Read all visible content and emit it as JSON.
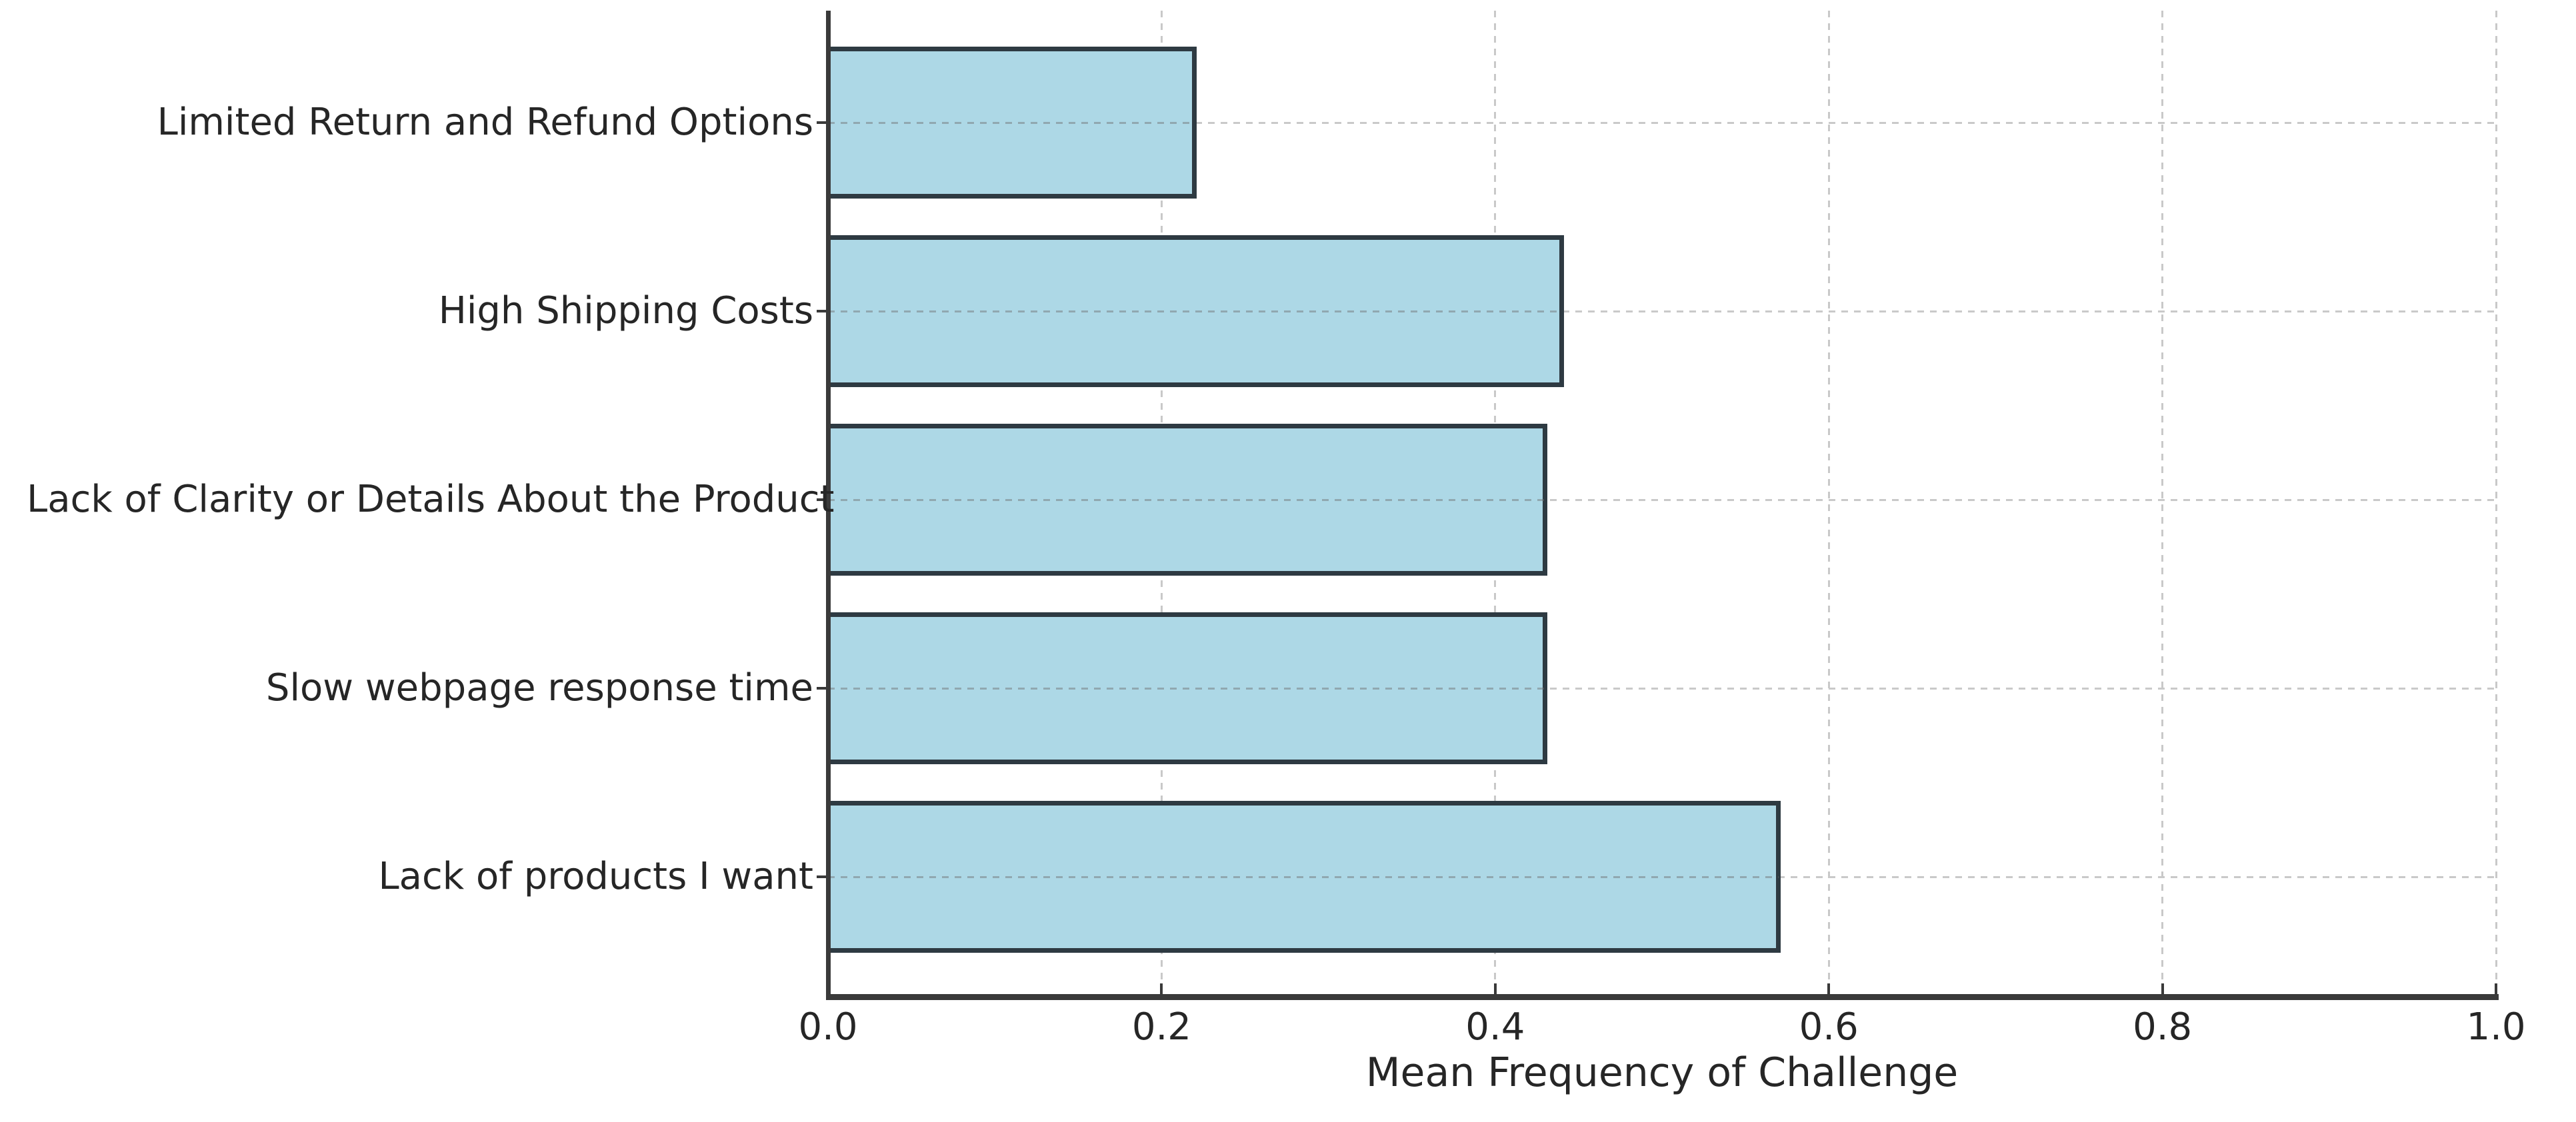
{
  "figure": {
    "background": "#ffffff"
  },
  "chart_data": {
    "type": "bar",
    "orientation": "horizontal",
    "title": "",
    "xlabel": "Mean Frequency of Challenge",
    "ylabel": "",
    "categories": [
      "Limited Return and Refund Options",
      "High Shipping Costs",
      "Lack of Clarity or Details About the Product",
      "Slow webpage response time",
      "Lack of products I want"
    ],
    "values": [
      0.22,
      0.44,
      0.43,
      0.43,
      0.57
    ],
    "xlim": [
      0.0,
      1.0
    ],
    "xticks": [
      0.0,
      0.2,
      0.4,
      0.6,
      0.8,
      1.0
    ],
    "xtick_labels": [
      "0.0",
      "0.2",
      "0.4",
      "0.6",
      "0.8",
      "1.0"
    ],
    "grid": "dashed",
    "legend": "none",
    "colors": {
      "bar_fill": "#ADD8E6",
      "bar_edge": "#2e3a42",
      "axis": "#3a3a3a",
      "grid": "#c9c9c9",
      "grid_on_bar": "rgba(110,110,110,0.45)",
      "text": "#262626",
      "background": "#ffffff"
    }
  }
}
